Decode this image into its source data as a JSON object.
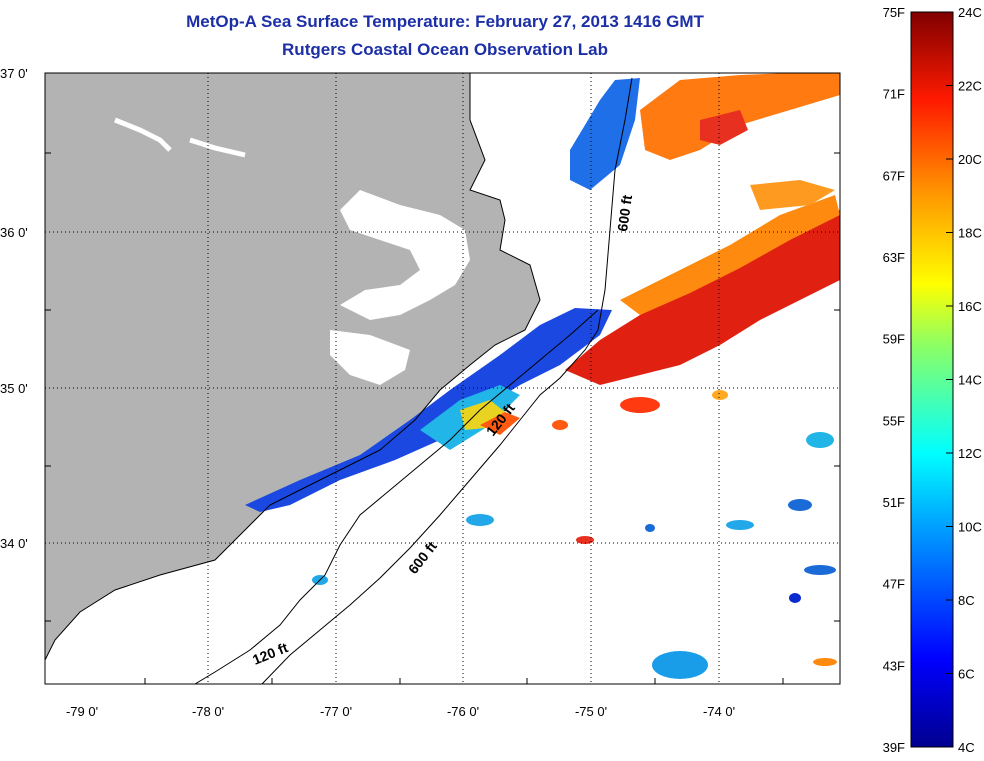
{
  "title": {
    "line1": "MetOp-A Sea Surface Temperature:  February 27, 2013 1416 GMT",
    "line2": "Rutgers Coastal Ocean Observation Lab"
  },
  "lat_labels": [
    "37 0'",
    "36 0'",
    "35 0'",
    "34 0'"
  ],
  "lon_labels": [
    "-79 0'",
    "-78 0'",
    "-77 0'",
    "-76 0'",
    "-75 0'",
    "-74 0'"
  ],
  "contour_labels": [
    "600 ft",
    "120 ft",
    "600 ft",
    "120 ft"
  ],
  "colorbar": {
    "fahrenheit": [
      "75F",
      "71F",
      "67F",
      "63F",
      "59F",
      "55F",
      "51F",
      "47F",
      "43F",
      "39F"
    ],
    "celsius": [
      "24C",
      "22C",
      "20C",
      "18C",
      "16C",
      "14C",
      "12C",
      "10C",
      "8C",
      "6C",
      "4C"
    ]
  },
  "colors": {
    "land": "#b3b3b3",
    "title": "#1c2fa6",
    "cold": "#0a1fd0",
    "warm": "#d81414"
  }
}
